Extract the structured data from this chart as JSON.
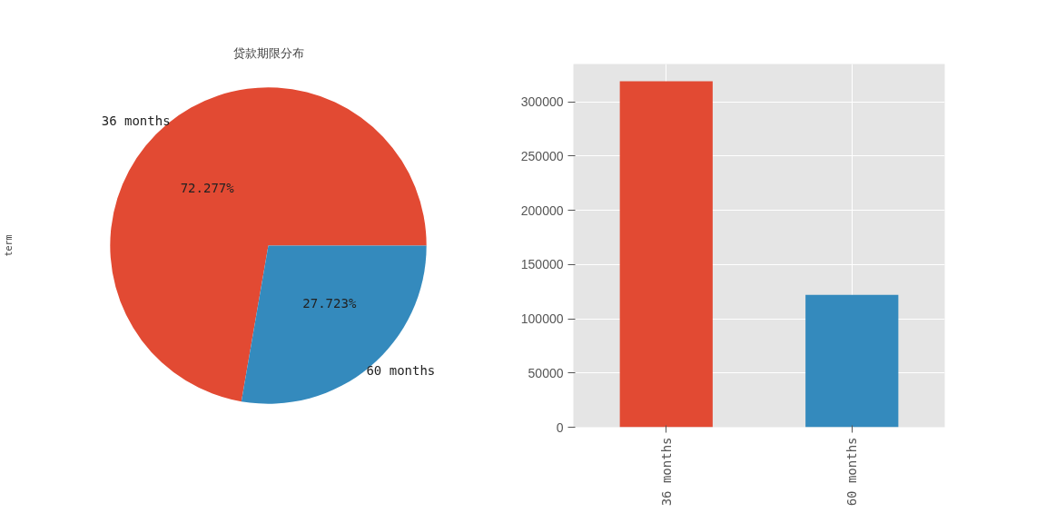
{
  "chart_data": [
    {
      "type": "pie",
      "title": "贷款期限分布",
      "ylabel": "term",
      "categories": [
        "36 months",
        "60 months"
      ],
      "values": [
        72.277,
        27.723
      ],
      "value_labels": [
        "72.277%",
        "27.723%"
      ],
      "colors": [
        "#e24a33",
        "#348abd"
      ]
    },
    {
      "type": "bar",
      "categories": [
        "36 months",
        "60 months"
      ],
      "values": [
        319000,
        122000
      ],
      "colors": [
        "#e24a33",
        "#348abd"
      ],
      "ylim": [
        0,
        335000
      ],
      "yticks": [
        0,
        50000,
        100000,
        150000,
        200000,
        250000,
        300000
      ],
      "grid": true
    }
  ]
}
